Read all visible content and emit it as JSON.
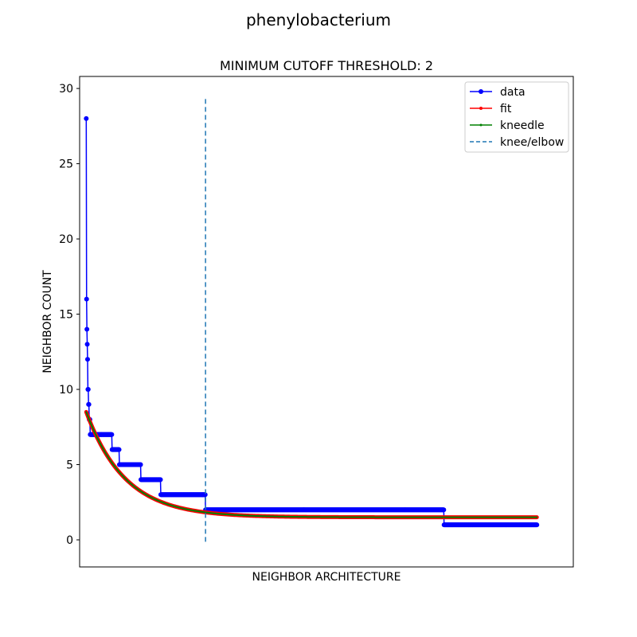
{
  "figure": {
    "suptitle": "phenylobacterium"
  },
  "chart_data": {
    "type": "line",
    "title": "MINIMUM CUTOFF THRESHOLD: 2",
    "xlabel": "NEIGHBOR ARCHITECTURE",
    "ylabel": "NEIGHBOR COUNT",
    "xlim": [
      -20,
      1470
    ],
    "ylim": [
      -1.8,
      30.8
    ],
    "x_ticks_shown": false,
    "yticks": [
      0,
      5,
      10,
      15,
      20,
      25,
      30
    ],
    "ytick_labels": [
      "0",
      "5",
      "10",
      "15",
      "20",
      "25",
      "30"
    ],
    "legend": {
      "placement": "upper right",
      "entries": [
        "data",
        "fit",
        "kneedle",
        "knee/elbow"
      ]
    },
    "series": [
      {
        "name": "data",
        "color": "#0000ff",
        "marker": "circle",
        "steps": [
          [
            0,
            28
          ],
          [
            1,
            16
          ],
          [
            2,
            14
          ],
          [
            3,
            13
          ],
          [
            4,
            12
          ],
          [
            5,
            10
          ],
          [
            7,
            9
          ],
          [
            9,
            8
          ],
          [
            12,
            7
          ],
          [
            78,
            6
          ],
          [
            100,
            5
          ],
          [
            165,
            4
          ],
          [
            225,
            3
          ],
          [
            360,
            2
          ],
          [
            1080,
            1
          ],
          [
            1360,
            1
          ]
        ]
      },
      {
        "name": "fit",
        "color": "#ff0000",
        "marker": "point",
        "model": {
          "a": 7.0,
          "k": 0.0085,
          "c": 1.5
        },
        "x_range": [
          0,
          1360
        ]
      },
      {
        "name": "kneedle",
        "color": "#008000",
        "marker": "point",
        "model": {
          "a": 7.0,
          "k": 0.0085,
          "c": 1.5
        },
        "x_range": [
          0,
          1360
        ]
      }
    ],
    "knee": {
      "name": "knee/elbow",
      "x": 360,
      "color": "#1f77b4",
      "style": "dashed"
    }
  }
}
